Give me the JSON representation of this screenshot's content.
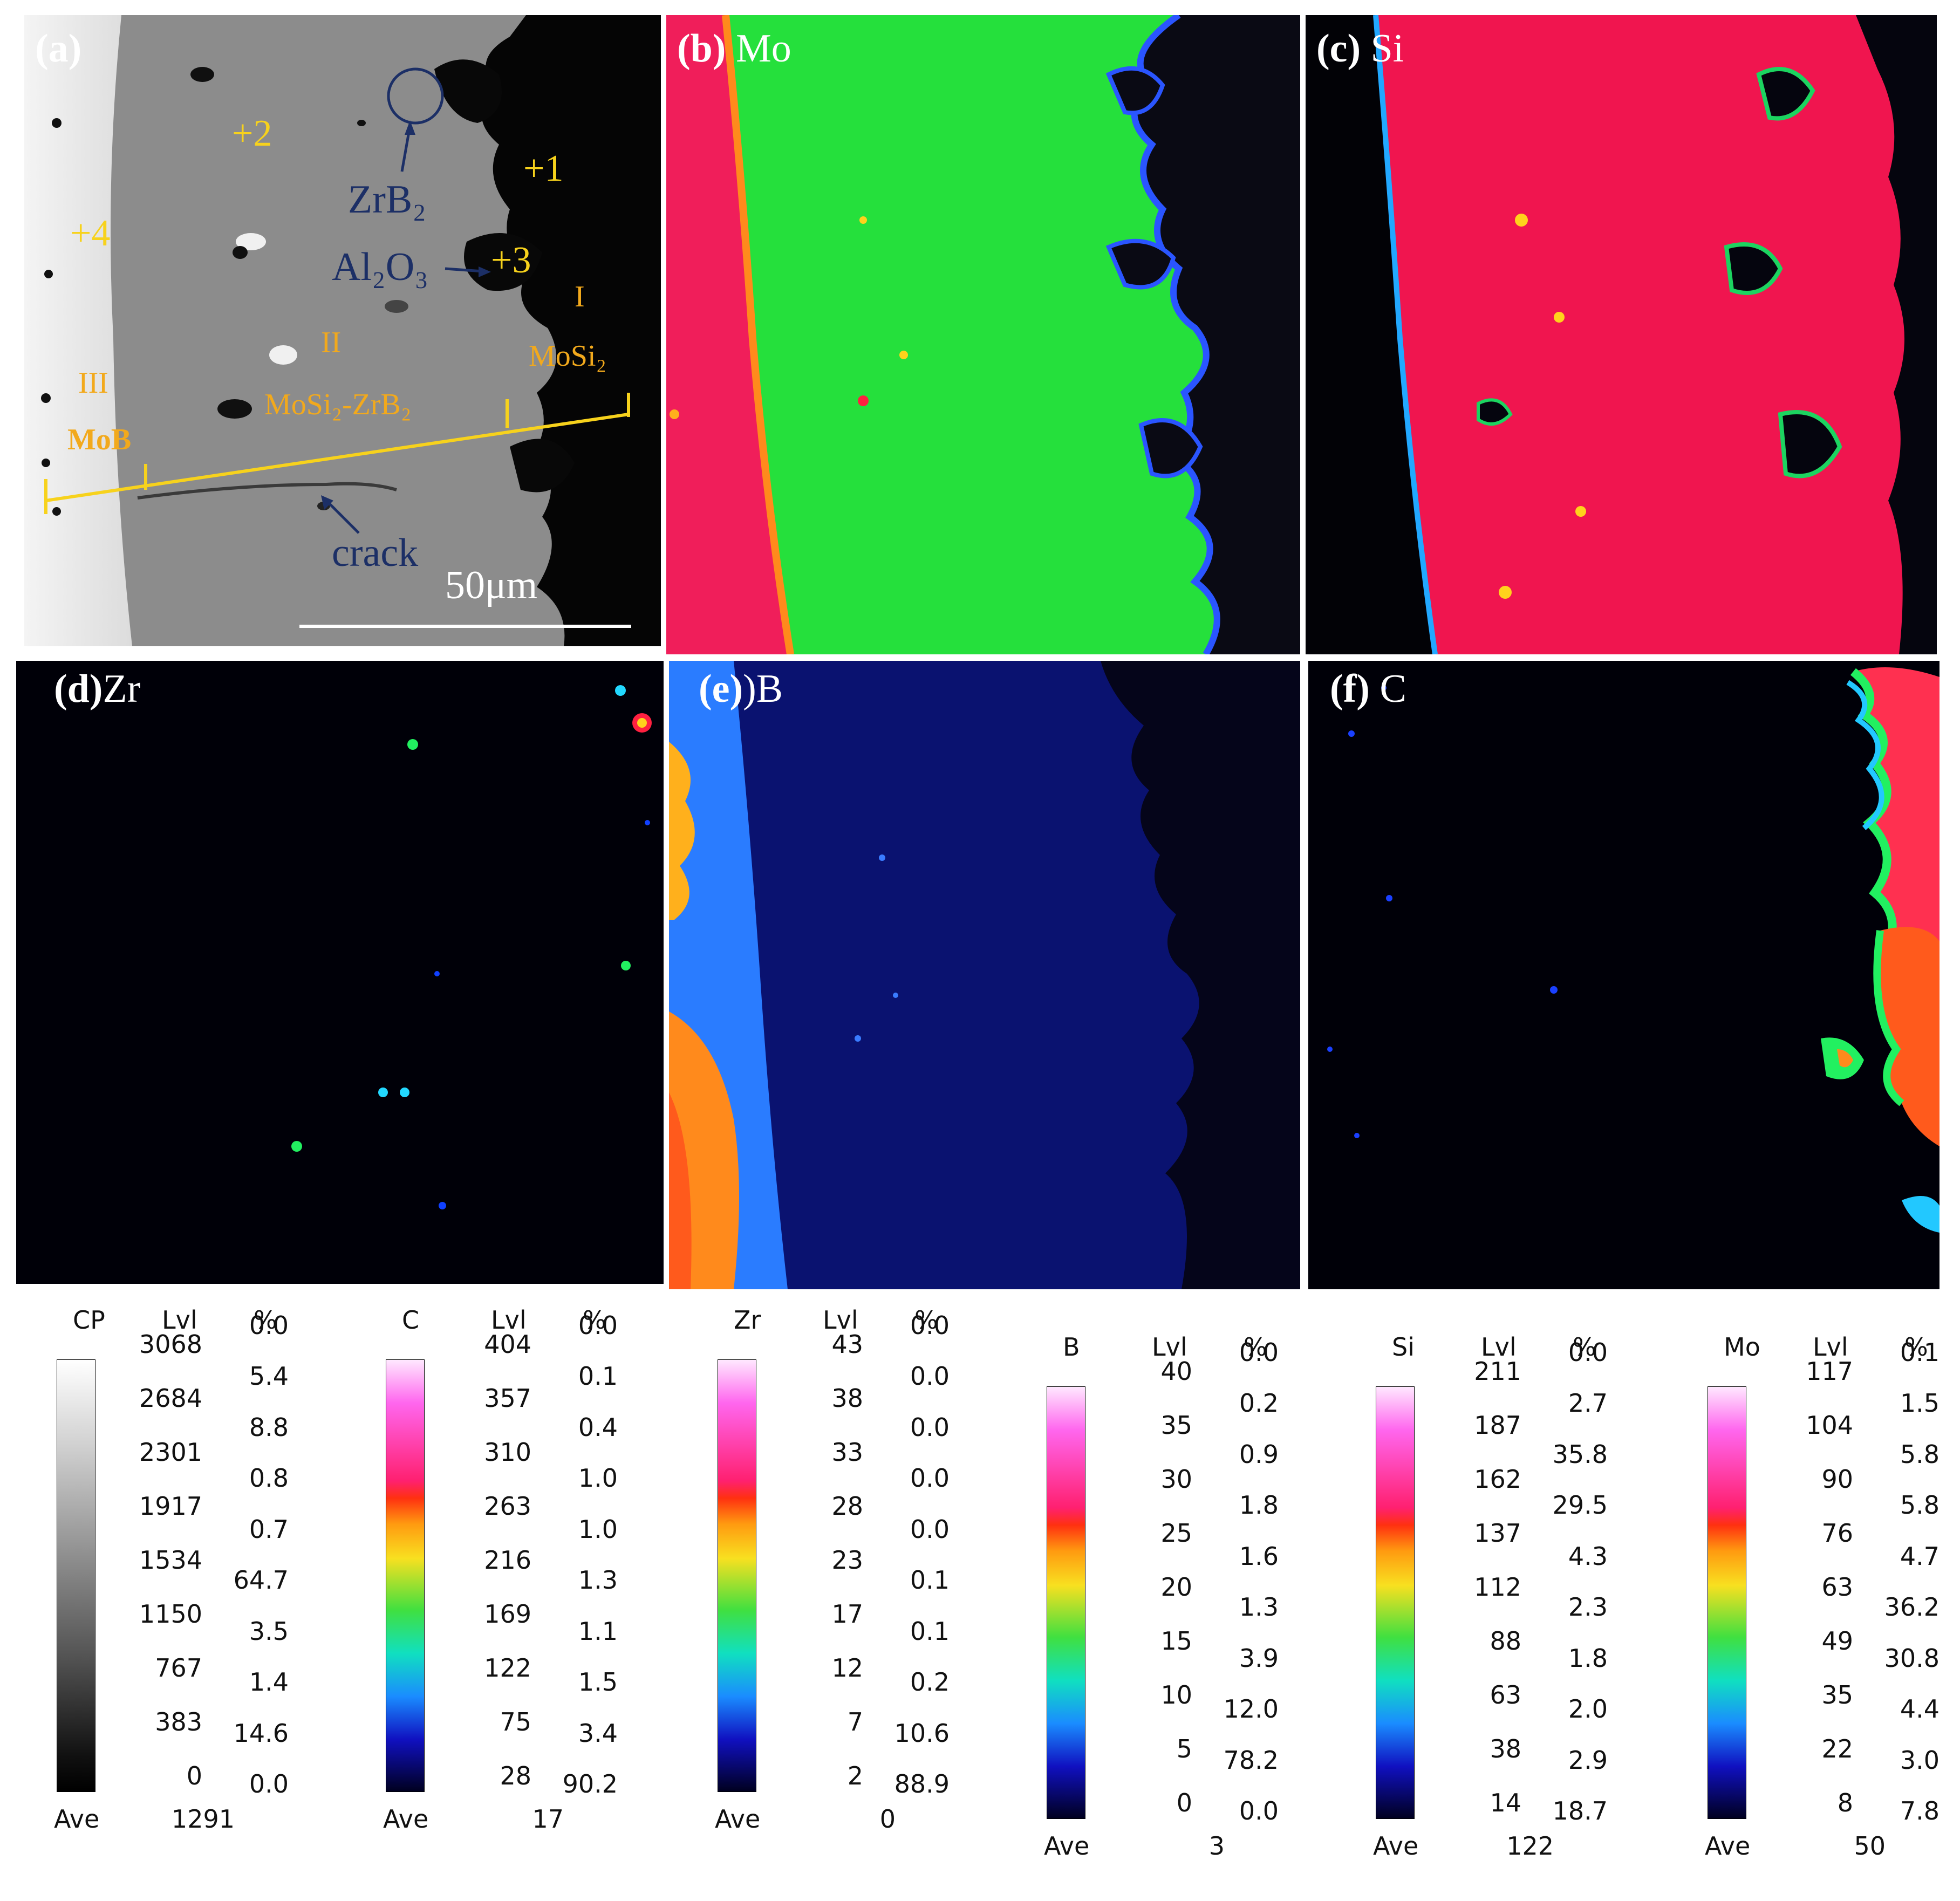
{
  "panels": {
    "a": {
      "letter": "(a)",
      "element": ""
    },
    "b": {
      "letter": "(b)",
      "element": " Mo"
    },
    "c": {
      "letter": "(c)",
      "element": " Si"
    },
    "d": {
      "letter": "(d)",
      "element": "Zr"
    },
    "e": {
      "letter": "(e)",
      "element": ")B"
    },
    "f": {
      "letter": "(f)",
      "element": " C"
    }
  },
  "annotations": {
    "p2": "+2",
    "p1": "+1",
    "p4": "+4",
    "p3": "+3",
    "zrb2": "ZrB₂",
    "al2o3": "Al₂O₃",
    "crack": "crack",
    "zone_I": "I",
    "zone_II": "II",
    "zone_III": "III",
    "mosi2": "MoSi₂",
    "mosi2_zrb2": "MoSi₂-ZrB₂",
    "mob": "MoB",
    "scale": "50μm"
  },
  "legends": [
    {
      "name": "CP",
      "gradient": "gray",
      "lvl": [
        "3068",
        "2684",
        "2301",
        "1917",
        "1534",
        "1150",
        "767",
        "383",
        "0"
      ],
      "pct": [
        "0.0",
        "5.4",
        "8.8",
        "0.8",
        "0.7",
        "64.7",
        "3.5",
        "1.4",
        "14.6",
        "0.0"
      ],
      "ave_label": "Ave",
      "ave": "1291"
    },
    {
      "name": "C",
      "gradient": "rainbow",
      "lvl": [
        "404",
        "357",
        "310",
        "263",
        "216",
        "169",
        "122",
        "75",
        "28"
      ],
      "pct": [
        "0.0",
        "0.1",
        "0.4",
        "1.0",
        "1.0",
        "1.3",
        "1.1",
        "1.5",
        "3.4",
        "90.2"
      ],
      "ave_label": "Ave",
      "ave": "17"
    },
    {
      "name": "Zr",
      "gradient": "rainbow",
      "lvl": [
        "43",
        "38",
        "33",
        "28",
        "23",
        "17",
        "12",
        "7",
        "2"
      ],
      "pct": [
        "0.0",
        "0.0",
        "0.0",
        "0.0",
        "0.0",
        "0.1",
        "0.1",
        "0.2",
        "10.6",
        "88.9"
      ],
      "ave_label": "Ave",
      "ave": "0"
    },
    {
      "name": "B",
      "gradient": "rainbow",
      "lvl": [
        "40",
        "35",
        "30",
        "25",
        "20",
        "15",
        "10",
        "5",
        "0"
      ],
      "pct": [
        "0.0",
        "0.2",
        "0.9",
        "1.8",
        "1.6",
        "1.3",
        "3.9",
        "12.0",
        "78.2",
        "0.0"
      ],
      "ave_label": "Ave",
      "ave": "3"
    },
    {
      "name": "Si",
      "gradient": "rainbow",
      "lvl": [
        "211",
        "187",
        "162",
        "137",
        "112",
        "88",
        "63",
        "38",
        "14"
      ],
      "pct": [
        "0.0",
        "2.7",
        "35.8",
        "29.5",
        "4.3",
        "2.3",
        "1.8",
        "2.0",
        "2.9",
        "18.7"
      ],
      "ave_label": "Ave",
      "ave": "122"
    },
    {
      "name": "Mo",
      "gradient": "rainbow",
      "lvl": [
        "117",
        "104",
        "90",
        "76",
        "63",
        "49",
        "35",
        "22",
        "8"
      ],
      "pct": [
        "0.1",
        "1.5",
        "5.8",
        "5.8",
        "4.7",
        "36.2",
        "30.8",
        "4.4",
        "3.0",
        "7.8"
      ],
      "ave_label": "Ave",
      "ave": "50"
    }
  ],
  "header_lvl": "Lvl",
  "header_pct": "%"
}
